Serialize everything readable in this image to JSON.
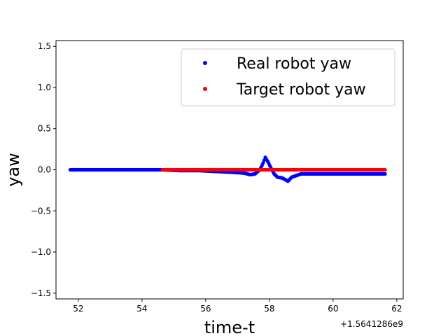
{
  "chart_data": {
    "type": "scatter",
    "xlabel": "time-t",
    "ylabel": "yaw",
    "x_offset_label": "+1.5641286e9",
    "xlim": [
      51.3,
      62.2
    ],
    "ylim": [
      -1.57,
      1.57
    ],
    "xticks": [
      52,
      54,
      56,
      58,
      60,
      62
    ],
    "yticks": [
      -1.5,
      -1.0,
      -0.5,
      0.0,
      0.5,
      1.0,
      1.5
    ],
    "xtick_labels": [
      "52",
      "54",
      "56",
      "58",
      "60",
      "62"
    ],
    "ytick_labels": [
      "−1.5",
      "−1.0",
      "−0.5",
      "0.0",
      "0.5",
      "1.0",
      "1.5"
    ],
    "grid": false,
    "legend_position": "top-right",
    "series": [
      {
        "name": "Real robot yaw",
        "color": "#0000ff",
        "points": [
          [
            51.75,
            0.0
          ],
          [
            52.5,
            0.0
          ],
          [
            53.5,
            0.0
          ],
          [
            54.6,
            0.0
          ],
          [
            55.2,
            -0.01
          ],
          [
            55.8,
            -0.01
          ],
          [
            56.3,
            -0.02
          ],
          [
            56.8,
            -0.03
          ],
          [
            57.2,
            -0.04
          ],
          [
            57.4,
            -0.06
          ],
          [
            57.55,
            -0.05
          ],
          [
            57.7,
            0.0
          ],
          [
            57.8,
            0.08
          ],
          [
            57.87,
            0.15
          ],
          [
            57.95,
            0.1
          ],
          [
            58.05,
            0.02
          ],
          [
            58.15,
            -0.05
          ],
          [
            58.25,
            -0.09
          ],
          [
            58.4,
            -0.1
          ],
          [
            58.5,
            -0.12
          ],
          [
            58.58,
            -0.14
          ],
          [
            58.7,
            -0.09
          ],
          [
            58.85,
            -0.07
          ],
          [
            59.0,
            -0.05
          ],
          [
            59.3,
            -0.05
          ],
          [
            59.8,
            -0.05
          ],
          [
            60.5,
            -0.05
          ],
          [
            61.0,
            -0.05
          ],
          [
            61.63,
            -0.05
          ]
        ]
      },
      {
        "name": "Target robot yaw",
        "color": "#ff0000",
        "points": [
          [
            54.65,
            0.0
          ],
          [
            61.63,
            0.0
          ]
        ]
      }
    ]
  }
}
